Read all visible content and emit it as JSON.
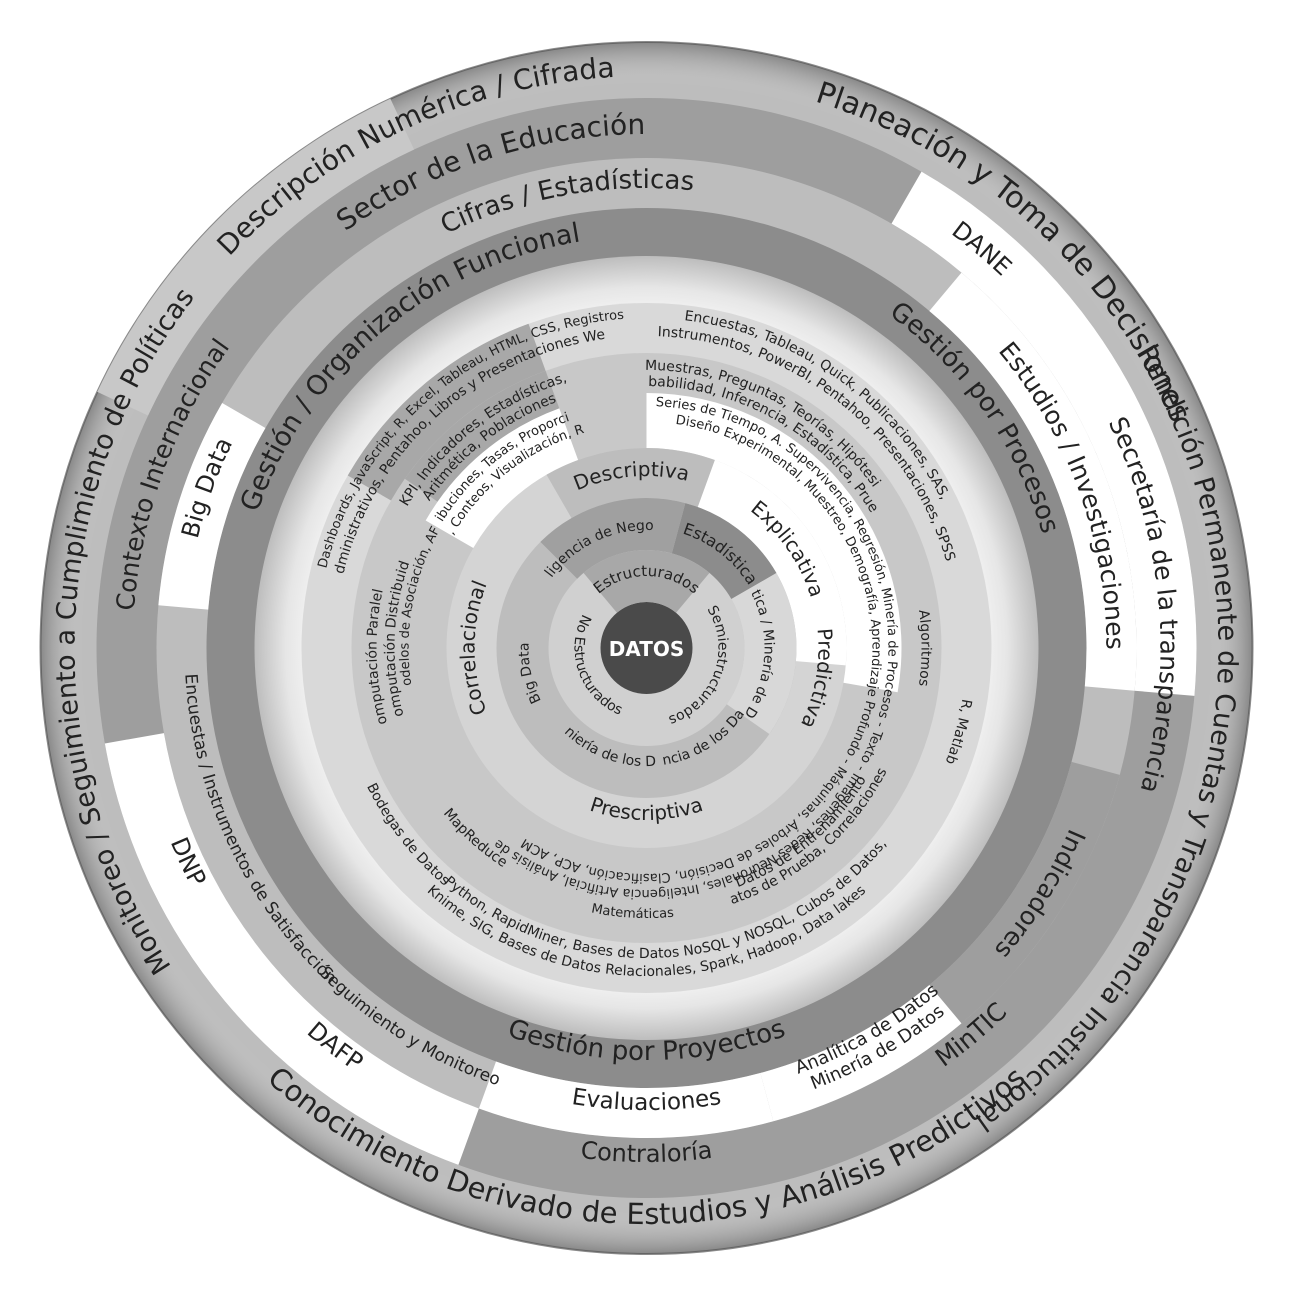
{
  "center": {
    "label": "DATOS"
  },
  "outer_ring": [
    "Planeación y Toma de Decisiones",
    "Rendición Permanente de Cuentas y Transparencia Institucional",
    "Conocimiento Derivado de Estudios y Análisis Predictivos",
    "Monitoreo / Seguimiento a Cumplimiento de Políticas",
    "Descripción Numérica / Cifrada"
  ],
  "ring_entities": [
    "Sector de la Educación",
    "DANE",
    "Secretaría de la transparencia",
    "MinTIC",
    "Contraloría",
    "DAFP",
    "DNP",
    "Contexto Internacional"
  ],
  "ring_products": [
    "Cifras / Estadísticas",
    "Estudios / Investigaciones",
    "Indicadores",
    "Analítica de Datos",
    "Minería de Datos",
    "Evaluaciones",
    "Seguimiento y Monitoreo",
    "Encuestas / Instrumentos de Satisfacción",
    "Big Data"
  ],
  "ring_management": [
    "Gestión / Organización Funcional",
    "Gestión por Procesos",
    "Gestión por Proyectos"
  ],
  "ring_tools": [
    "Encuestas, Tableau, Quick, Publicaciones, SAS,",
    "Instrumentos, PowerBI, Pentahoo, Presentaciones, SPSS",
    "R, Matlab",
    "Python, RapidMiner, Bases de Datos NoSQL y NOSQL, Cubos de Datos,",
    "Knime, SIG, Bases de Datos Relacionales, Spark, Hadoop, Data lakes",
    "Bodegas de Datos",
    "Dashboards, JavaScript, R, Excel, Tableau, HTML, CSS, Registros",
    "Administrativos, Pentahoo, Libros y Presentaciones Web"
  ],
  "ring_techniques": [
    "Muestras, Preguntas, Teorías, Hipótesis",
    "Probabilidad, Inferencia, Estadística, Pruebas",
    "Algoritmos",
    "Datos de Prueba, Correlaciones,",
    "Datos de Entrenamiento",
    "Matemáticas",
    "MapReduce",
    "Computación Paralela",
    "Computación Distribuida",
    "KPI, Indicadores, Estadísticas,",
    "Aritmética, Poblaciones"
  ],
  "ring_methods": [
    "Series de Tiempo, A. Supervivencia, Regresión, Minería de Procesos - Texto - Imágenes, Redes Neuronales, Inteligencia Artificial, Análisis de",
    "Diseño Experimental, Muestreo, Demografía, Aprendizaje Profundo - Máquinas, Árboles de Decisión, Clasificación, ACP, ACM",
    "Distribuciones, Tasas, Proporciones,",
    "Índices, Conteos, Visualización, Razones",
    "Modelos de Asociación, AFT"
  ],
  "ring_analysis": [
    "Explicativa",
    "Predictiva",
    "Prescriptiva",
    "Correlacional",
    "Descriptiva"
  ],
  "ring_disciplines": [
    "Estadística",
    "Analítica / Minería de Datos",
    "Ciencia de los Datos",
    "Ingeniería de los Datos",
    "Big Data",
    "Inteligencia de Negocios"
  ],
  "ring_data_types": [
    "Estructurados",
    "Semiestructurados",
    "No Estructurados"
  ],
  "colors": {
    "outer_ring": "#bdbdbd",
    "entities_ring": "#9e9e9e",
    "products_ring": "#bdbdbd",
    "management_ring": "#8c8c8c",
    "tools_ring": "#d9d9d9",
    "methods_ring": "#c8c8c8",
    "analysis_ring": "#cfcfcf",
    "disciplines_ring": "#bdbdbd",
    "data_types_ring": "#d0d0d0",
    "center": "#4a4a4a",
    "accent_white": "#ffffff",
    "dark_band": "#8a8a8a",
    "text": "#222222"
  }
}
